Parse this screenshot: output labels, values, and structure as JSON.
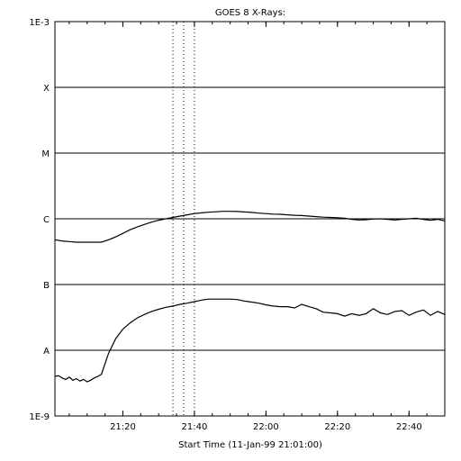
{
  "chart_data": {
    "type": "line",
    "title": "GOES 8 X-Rays:",
    "xlabel": "Start Time (11-Jan-99 21:01:00)",
    "ylabel": "",
    "y_scale": "log",
    "ylim": [
      1e-09,
      0.001
    ],
    "y_ticks": [
      {
        "value": 0.001,
        "label": "1E-3"
      },
      {
        "value": 0.0001,
        "label": "X"
      },
      {
        "value": 1e-05,
        "label": "M"
      },
      {
        "value": 1e-06,
        "label": "C"
      },
      {
        "value": 1e-07,
        "label": "B"
      },
      {
        "value": 1e-08,
        "label": "A"
      },
      {
        "value": 1e-09,
        "label": "1E-9"
      }
    ],
    "xlim": [
      "21:01",
      "22:50"
    ],
    "x_ticks": [
      "21:20",
      "21:40",
      "22:00",
      "22:20",
      "22:40"
    ],
    "grid": "horizontal",
    "reference_lines": [
      "21:34",
      "21:37",
      "21:40"
    ],
    "series": [
      {
        "name": "",
        "x": [
          "21:01",
          "21:03",
          "21:05",
          "21:07",
          "21:09",
          "21:11",
          "21:13",
          "21:14",
          "21:16",
          "21:18",
          "21:20",
          "21:22",
          "21:24",
          "21:26",
          "21:28",
          "21:30",
          "21:32",
          "21:34",
          "21:36",
          "21:38",
          "21:40",
          "21:42",
          "21:44",
          "21:46",
          "21:48",
          "21:50",
          "21:52",
          "21:54",
          "21:56",
          "21:58",
          "22:00",
          "22:02",
          "22:04",
          "22:06",
          "22:08",
          "22:10",
          "22:12",
          "22:14",
          "22:16",
          "22:18",
          "22:20",
          "22:22",
          "22:24",
          "22:26",
          "22:28",
          "22:30",
          "22:32",
          "22:34",
          "22:36",
          "22:38",
          "22:40",
          "22:42",
          "22:44",
          "22:46",
          "22:48",
          "22:50"
        ],
        "values": [
          4.8e-07,
          4.6e-07,
          4.5e-07,
          4.4e-07,
          4.4e-07,
          4.4e-07,
          4.4e-07,
          4.4e-07,
          4.8e-07,
          5.3e-07,
          6e-07,
          6.8e-07,
          7.5e-07,
          8.2e-07,
          8.9e-07,
          9.5e-07,
          1e-06,
          1.05e-06,
          1.1e-06,
          1.15e-06,
          1.2e-06,
          1.23e-06,
          1.26e-06,
          1.28e-06,
          1.3e-06,
          1.3e-06,
          1.29e-06,
          1.27e-06,
          1.25e-06,
          1.22e-06,
          1.2e-06,
          1.18e-06,
          1.17e-06,
          1.15e-06,
          1.13e-06,
          1.12e-06,
          1.1e-06,
          1.08e-06,
          1.06e-06,
          1.05e-06,
          1.04e-06,
          1.02e-06,
          9.8e-07,
          9.6e-07,
          9.7e-07,
          9.9e-07,
          1e-06,
          9.8e-07,
          9.6e-07,
          9.8e-07,
          1e-06,
          1.02e-06,
          9.8e-07,
          9.5e-07,
          9.8e-07,
          9.3e-07
        ]
      },
      {
        "name": "",
        "x": [
          "21:01",
          "21:02",
          "21:03",
          "21:04",
          "21:05",
          "21:06",
          "21:07",
          "21:08",
          "21:09",
          "21:10",
          "21:11",
          "21:12",
          "21:13",
          "21:14",
          "21:16",
          "21:18",
          "21:20",
          "21:22",
          "21:24",
          "21:26",
          "21:28",
          "21:30",
          "21:32",
          "21:34",
          "21:36",
          "21:38",
          "21:40",
          "21:42",
          "21:44",
          "21:46",
          "21:48",
          "21:50",
          "21:52",
          "21:54",
          "21:56",
          "21:58",
          "22:00",
          "22:02",
          "22:04",
          "22:06",
          "22:08",
          "22:10",
          "22:12",
          "22:14",
          "22:16",
          "22:18",
          "22:20",
          "22:22",
          "22:24",
          "22:26",
          "22:28",
          "22:30",
          "22:32",
          "22:34",
          "22:36",
          "22:38",
          "22:40",
          "22:42",
          "22:44",
          "22:46",
          "22:48",
          "22:50"
        ],
        "values": [
          4e-09,
          4.1e-09,
          3.8e-09,
          3.6e-09,
          3.9e-09,
          3.5e-09,
          3.7e-09,
          3.4e-09,
          3.6e-09,
          3.3e-09,
          3.5e-09,
          3.8e-09,
          4e-09,
          4.3e-09,
          9e-09,
          1.5e-08,
          2.1e-08,
          2.6e-08,
          3.1e-08,
          3.5e-08,
          3.9e-08,
          4.2e-08,
          4.5e-08,
          4.7e-08,
          5e-08,
          5.2e-08,
          5.5e-08,
          5.8e-08,
          6e-08,
          6e-08,
          6e-08,
          6e-08,
          5.9e-08,
          5.6e-08,
          5.4e-08,
          5.2e-08,
          4.9e-08,
          4.7e-08,
          4.6e-08,
          4.6e-08,
          4.4e-08,
          5e-08,
          4.6e-08,
          4.3e-08,
          3.8e-08,
          3.7e-08,
          3.6e-08,
          3.3e-08,
          3.6e-08,
          3.4e-08,
          3.6e-08,
          4.3e-08,
          3.7e-08,
          3.5e-08,
          3.9e-08,
          4e-08,
          3.4e-08,
          3.8e-08,
          4.1e-08,
          3.4e-08,
          3.9e-08,
          3.5e-08
        ]
      }
    ]
  }
}
